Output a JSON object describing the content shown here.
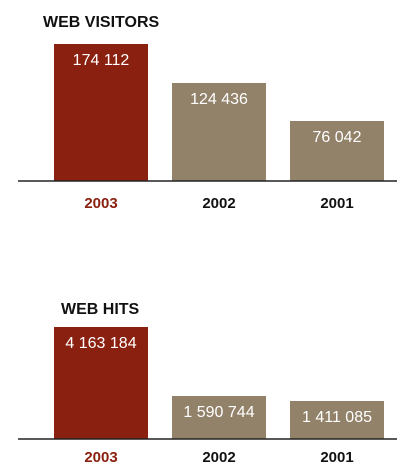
{
  "colors": {
    "highlight": "#8a2010",
    "base": "#93826a",
    "axis": "#222222",
    "highlight_label": "#8a2010",
    "label": "#111111"
  },
  "chart_data": [
    {
      "type": "bar",
      "title": "WEB VISITORS",
      "categories": [
        "2003",
        "2002",
        "2001"
      ],
      "values": [
        174112,
        124436,
        76042
      ],
      "value_labels": [
        "174 112",
        "124 436",
        "76 042"
      ],
      "highlight_index": 0,
      "ylim": [
        0,
        174112
      ],
      "grid": false
    },
    {
      "type": "bar",
      "title": "WEB HITS",
      "categories": [
        "2003",
        "2002",
        "2001"
      ],
      "values": [
        4163184,
        1590744,
        1411085
      ],
      "value_labels": [
        "4 163 184",
        "1 590 744",
        "1 411 085"
      ],
      "highlight_index": 0,
      "ylim": [
        0,
        4163184
      ],
      "grid": false
    }
  ]
}
